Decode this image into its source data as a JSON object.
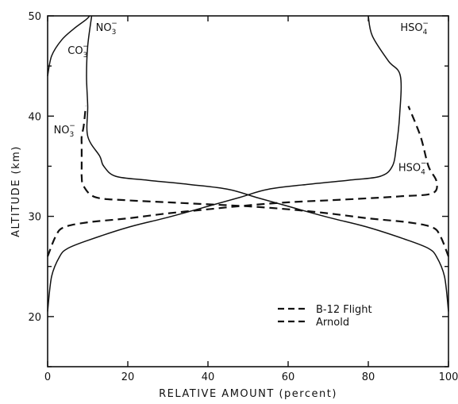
{
  "chart_data": {
    "type": "line",
    "xlabel": "RELATIVE AMOUNT (percent)",
    "ylabel": "ALTITUDE (km)",
    "xlim": [
      0,
      100
    ],
    "ylim": [
      15,
      50
    ],
    "xticks": [
      0,
      20,
      40,
      60,
      80,
      100
    ],
    "yticks": [
      20,
      30,
      40,
      50
    ],
    "legend": {
      "placement": "lower-right",
      "entries": [
        {
          "label": "B-12 Flight",
          "style": "dashed"
        },
        {
          "label": "Arnold",
          "style": "dashed"
        }
      ]
    },
    "annotations": [
      {
        "base": "CO",
        "sub": "3",
        "sup": "−",
        "x": 5,
        "y": 46.2
      },
      {
        "base": "NO",
        "sub": "3",
        "sup": "−",
        "x": 12,
        "y": 48.5
      },
      {
        "base": "HSO",
        "sub": "4",
        "sup": "−",
        "x": 88,
        "y": 48.5
      },
      {
        "base": "NO",
        "sub": "3",
        "sup": "−",
        "x": 1.5,
        "y": 38.3
      },
      {
        "base": "HSO",
        "sub": "4",
        "sup": "−",
        "x": 87.5,
        "y": 34.5
      }
    ],
    "series": [
      {
        "style": "solid",
        "points": [
          [
            0,
            20.5
          ],
          [
            1,
            24
          ],
          [
            3,
            26
          ],
          [
            5,
            26.8
          ],
          [
            10,
            27.6
          ],
          [
            20,
            28.9
          ],
          [
            30,
            29.9
          ],
          [
            40,
            31
          ],
          [
            48,
            31.9
          ],
          [
            55,
            32.7
          ],
          [
            65,
            33.2
          ],
          [
            75,
            33.6
          ],
          [
            83,
            34
          ],
          [
            86,
            35
          ],
          [
            87,
            37
          ],
          [
            87.8,
            40
          ],
          [
            88,
            44
          ],
          [
            85,
            45.5
          ],
          [
            81,
            48
          ],
          [
            80,
            50
          ]
        ]
      },
      {
        "style": "solid",
        "points": [
          [
            100,
            20.5
          ],
          [
            99,
            24
          ],
          [
            97,
            26
          ],
          [
            95,
            26.8
          ],
          [
            90,
            27.6
          ],
          [
            80,
            28.9
          ],
          [
            70,
            29.9
          ],
          [
            60,
            31
          ],
          [
            52,
            31.9
          ],
          [
            45,
            32.7
          ],
          [
            35,
            33.2
          ],
          [
            25,
            33.6
          ],
          [
            17,
            34
          ],
          [
            14,
            35
          ],
          [
            13,
            36
          ],
          [
            10,
            38
          ],
          [
            10,
            41
          ],
          [
            9.7,
            44
          ],
          [
            10,
            47
          ],
          [
            11,
            50
          ]
        ]
      },
      {
        "style": "solid",
        "points": [
          [
            0,
            44
          ],
          [
            1,
            46
          ],
          [
            3.5,
            47.6
          ],
          [
            6.5,
            48.7
          ],
          [
            9.5,
            49.6
          ],
          [
            10.5,
            50
          ]
        ]
      },
      {
        "style": "dashed",
        "points": [
          [
            100,
            26
          ],
          [
            98,
            28
          ],
          [
            96,
            28.9
          ],
          [
            90,
            29.4
          ],
          [
            80,
            29.8
          ],
          [
            70,
            30.3
          ],
          [
            60,
            30.7
          ],
          [
            50,
            31
          ],
          [
            40,
            31.2
          ],
          [
            30,
            31.4
          ],
          [
            20,
            31.6
          ],
          [
            12,
            31.9
          ],
          [
            9,
            33
          ],
          [
            8.5,
            34
          ],
          [
            8.5,
            35
          ],
          [
            8.5,
            37
          ],
          [
            8.5,
            38
          ],
          [
            9,
            39
          ],
          [
            9.5,
            41
          ]
        ]
      },
      {
        "style": "dashed",
        "points": [
          [
            0,
            26
          ],
          [
            2,
            28
          ],
          [
            4,
            28.9
          ],
          [
            10,
            29.4
          ],
          [
            20,
            29.8
          ],
          [
            30,
            30.3
          ],
          [
            40,
            30.7
          ],
          [
            50,
            31.1
          ],
          [
            60,
            31.4
          ],
          [
            70,
            31.6
          ],
          [
            80,
            31.8
          ],
          [
            88,
            32
          ],
          [
            96,
            32.3
          ],
          [
            97,
            33.5
          ],
          [
            95,
            35
          ],
          [
            93,
            38
          ],
          [
            90,
            41
          ]
        ]
      }
    ],
    "legend_line_style": "dashed"
  }
}
